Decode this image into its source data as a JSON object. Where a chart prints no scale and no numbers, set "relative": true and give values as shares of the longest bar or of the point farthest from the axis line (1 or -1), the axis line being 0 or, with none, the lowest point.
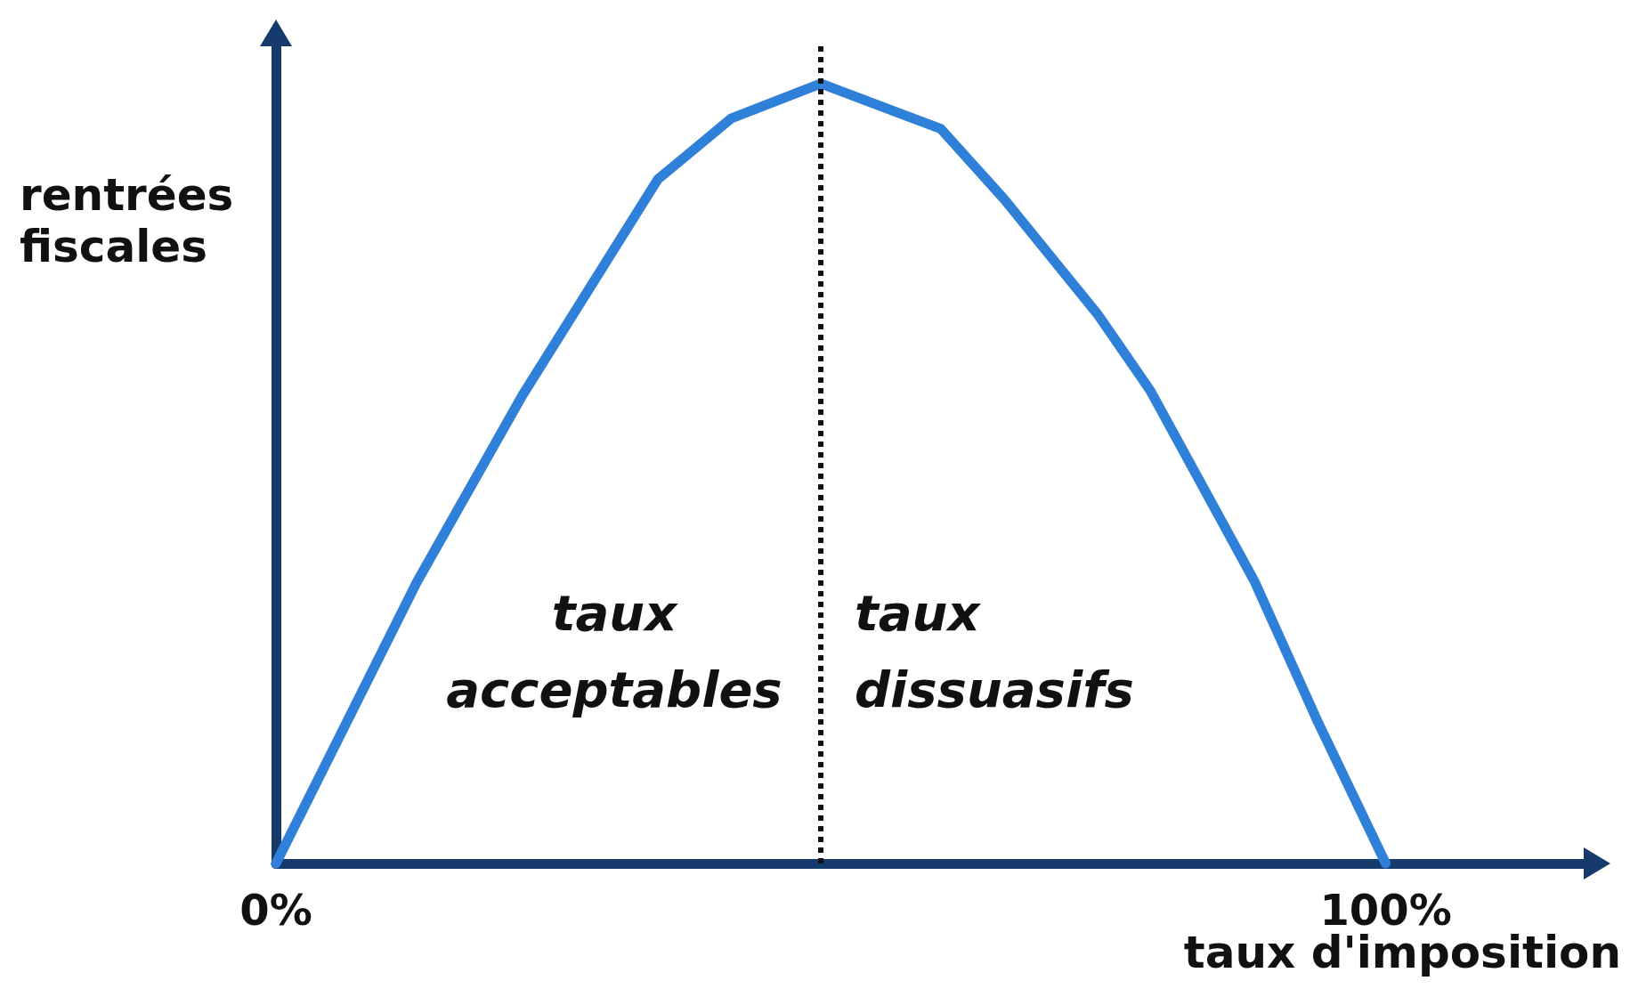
{
  "chart_data": {
    "type": "line",
    "relative": true,
    "xlabel": "taux d'imposition",
    "ylabel": "rentrées\nfiscales",
    "x": [
      0,
      12.7,
      22.2,
      34.4,
      41.0,
      49.1,
      59.9,
      65.6,
      74.1,
      78.8,
      88.2,
      93.9,
      100
    ],
    "series": [
      {
        "color": "#2f80d8",
        "values": [
          0,
          0.361,
          0.6,
          0.877,
          0.955,
          1,
          0.942,
          0.852,
          0.703,
          0.606,
          0.361,
          0.181,
          0
        ]
      }
    ],
    "xlim": [
      0,
      118
    ],
    "xticks": [
      {
        "value": 0,
        "label": "0%"
      },
      {
        "value": 100,
        "label": "100%"
      }
    ],
    "ref_lines": [
      {
        "axis": "x",
        "value": 49.1,
        "label": null,
        "color": "#111111",
        "line_style": "dotted"
      }
    ],
    "annotations": [
      "taux\nacceptables",
      "taux\ndissuasifs"
    ],
    "line_style": "solid",
    "grid": false
  }
}
